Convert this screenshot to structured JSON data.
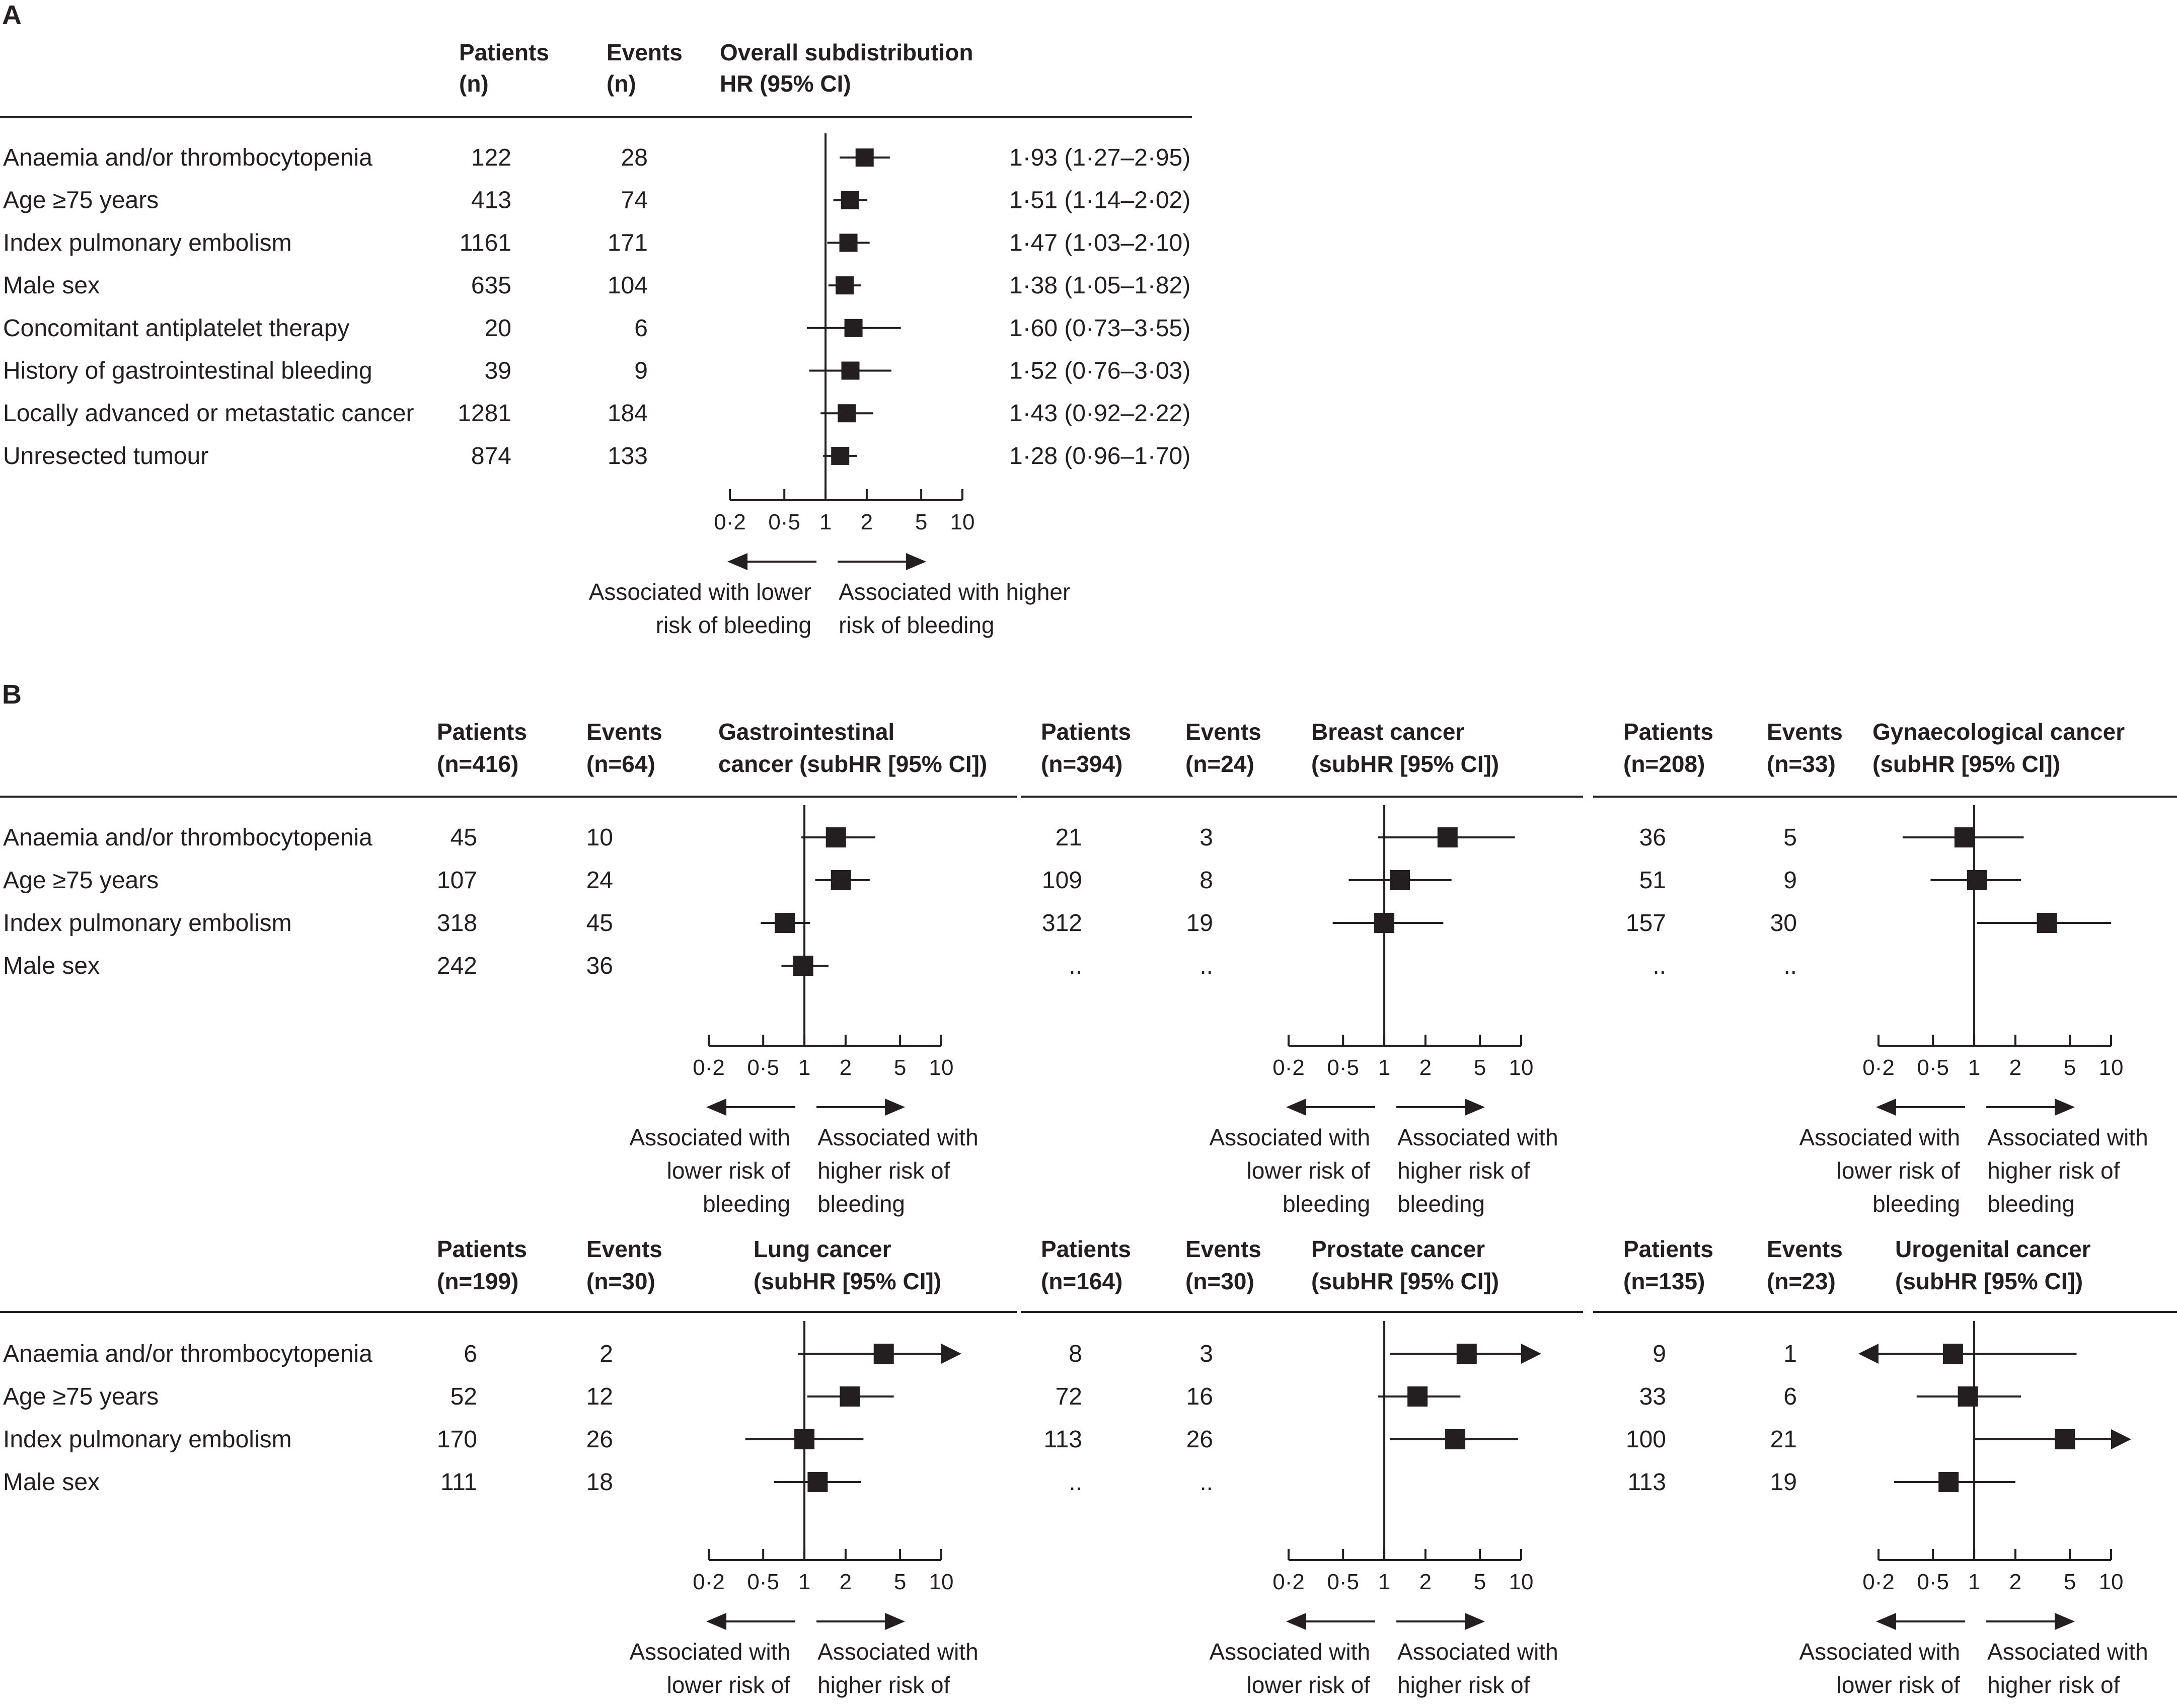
{
  "figure": {
    "panel_a_label": "A",
    "panel_b_label": "B",
    "arrow_lower_a": [
      "Associated with lower",
      "risk of bleeding"
    ],
    "arrow_higher_a": [
      "Associated with higher",
      "risk of bleeding"
    ],
    "arrow_lower_b": [
      "Associated with",
      "lower risk of",
      "bleeding"
    ],
    "arrow_higher_b": [
      "Associated with",
      "higher risk of",
      "bleeding"
    ],
    "axis_ticks": [
      "0·2",
      "0·5",
      "1",
      "2",
      "5",
      "10"
    ]
  },
  "chart_data": [
    {
      "type": "forest",
      "panel": "A",
      "x_scale": "log",
      "xlim": [
        0.2,
        10
      ],
      "reference": 1,
      "headers": {
        "patients": [
          "Patients",
          "(n)"
        ],
        "events": [
          "Events",
          "(n)"
        ],
        "estimate": [
          "Overall subdistribution",
          "HR (95% CI)"
        ]
      },
      "rows": [
        {
          "label": "Anaemia and/or thrombocytopenia",
          "patients": "122",
          "events": "28",
          "hr": 1.93,
          "lo": 1.27,
          "hi": 2.95,
          "text": "1·93 (1·27–2·95)"
        },
        {
          "label": "Age ≥75 years",
          "patients": "413",
          "events": "74",
          "hr": 1.51,
          "lo": 1.14,
          "hi": 2.02,
          "text": "1·51 (1·14–2·02)"
        },
        {
          "label": "Index pulmonary embolism",
          "patients": "1161",
          "events": "171",
          "hr": 1.47,
          "lo": 1.03,
          "hi": 2.1,
          "text": "1·47 (1·03–2·10)"
        },
        {
          "label": "Male sex",
          "patients": "635",
          "events": "104",
          "hr": 1.38,
          "lo": 1.05,
          "hi": 1.82,
          "text": "1·38 (1·05–1·82)"
        },
        {
          "label": "Concomitant antiplatelet therapy",
          "patients": "20",
          "events": "6",
          "hr": 1.6,
          "lo": 0.73,
          "hi": 3.55,
          "text": "1·60 (0·73–3·55)"
        },
        {
          "label": "History of gastrointestinal bleeding",
          "patients": "39",
          "events": "9",
          "hr": 1.52,
          "lo": 0.76,
          "hi": 3.03,
          "text": "1·52 (0·76–3·03)"
        },
        {
          "label": "Locally advanced or metastatic cancer",
          "patients": "1281",
          "events": "184",
          "hr": 1.43,
          "lo": 0.92,
          "hi": 2.22,
          "text": "1·43 (0·92–2·22)"
        },
        {
          "label": "Unresected tumour",
          "patients": "874",
          "events": "133",
          "hr": 1.28,
          "lo": 0.96,
          "hi": 1.7,
          "text": "1·28 (0·96–1·70)"
        }
      ]
    },
    {
      "type": "forest",
      "panel": "B",
      "x_scale": "log",
      "xlim": [
        0.2,
        10
      ],
      "reference": 1,
      "row_labels": [
        "Anaemia and/or thrombocytopenia",
        "Age ≥75 years",
        "Index pulmonary embolism",
        "Male sex"
      ],
      "subgroups": [
        {
          "name": "Gastrointestinal cancer",
          "patients_hdr": [
            "Patients",
            "(n=416)"
          ],
          "events_hdr": [
            "Events",
            "(n=64)"
          ],
          "est_hdr": [
            "Gastrointestinal",
            "cancer (subHR [95% CI])"
          ],
          "rows": [
            {
              "patients": "45",
              "events": "10",
              "hr": 1.7,
              "lo": 0.95,
              "hi": 3.3
            },
            {
              "patients": "107",
              "events": "24",
              "hr": 1.85,
              "lo": 1.2,
              "hi": 3.0
            },
            {
              "patients": "318",
              "events": "45",
              "hr": 0.72,
              "lo": 0.48,
              "hi": 1.1
            },
            {
              "patients": "242",
              "events": "36",
              "hr": 0.98,
              "lo": 0.68,
              "hi": 1.5
            }
          ]
        },
        {
          "name": "Breast cancer",
          "patients_hdr": [
            "Patients",
            "(n=394)"
          ],
          "events_hdr": [
            "Events",
            "(n=24)"
          ],
          "est_hdr": [
            "Breast cancer",
            "(subHR [95% CI])"
          ],
          "rows": [
            {
              "patients": "21",
              "events": "3",
              "hr": 2.9,
              "lo": 0.9,
              "hi": 9.0
            },
            {
              "patients": "109",
              "events": "8",
              "hr": 1.3,
              "lo": 0.55,
              "hi": 3.1
            },
            {
              "patients": "312",
              "events": "19",
              "hr": 1.0,
              "lo": 0.42,
              "hi": 2.7
            },
            {
              "patients": "..",
              "events": "..",
              "hr": null,
              "lo": null,
              "hi": null
            }
          ]
        },
        {
          "name": "Gynaecological cancer",
          "patients_hdr": [
            "Patients",
            "(n=208)"
          ],
          "events_hdr": [
            "Events",
            "(n=33)"
          ],
          "est_hdr": [
            "Gynaecological cancer",
            "(subHR [95% CI])"
          ],
          "rows": [
            {
              "patients": "36",
              "events": "5",
              "hr": 0.85,
              "lo": 0.3,
              "hi": 2.3
            },
            {
              "patients": "51",
              "events": "9",
              "hr": 1.05,
              "lo": 0.48,
              "hi": 2.2
            },
            {
              "patients": "157",
              "events": "30",
              "hr": 3.4,
              "lo": 1.05,
              "hi": 10.0
            },
            {
              "patients": "..",
              "events": "..",
              "hr": null,
              "lo": null,
              "hi": null
            }
          ]
        },
        {
          "name": "Lung cancer",
          "patients_hdr": [
            "Patients",
            "(n=199)"
          ],
          "events_hdr": [
            "Events",
            "(n=30)"
          ],
          "est_hdr": [
            "Lung cancer",
            "(subHR [95% CI])"
          ],
          "rows": [
            {
              "patients": "6",
              "events": "2",
              "hr": 3.8,
              "lo": 0.9,
              "hi": 10,
              "arrow_right": true
            },
            {
              "patients": "52",
              "events": "12",
              "hr": 2.15,
              "lo": 1.05,
              "hi": 4.5
            },
            {
              "patients": "170",
              "events": "26",
              "hr": 1.0,
              "lo": 0.37,
              "hi": 2.7
            },
            {
              "patients": "111",
              "events": "18",
              "hr": 1.25,
              "lo": 0.6,
              "hi": 2.6
            }
          ]
        },
        {
          "name": "Prostate cancer",
          "patients_hdr": [
            "Patients",
            "(n=164)"
          ],
          "events_hdr": [
            "Events",
            "(n=30)"
          ],
          "est_hdr": [
            "Prostate cancer",
            "(subHR [95% CI])"
          ],
          "rows": [
            {
              "patients": "8",
              "events": "3",
              "hr": 4.0,
              "lo": 1.1,
              "hi": 10,
              "arrow_right": true
            },
            {
              "patients": "72",
              "events": "16",
              "hr": 1.75,
              "lo": 0.9,
              "hi": 3.6
            },
            {
              "patients": "113",
              "events": "26",
              "hr": 3.3,
              "lo": 1.1,
              "hi": 9.5
            },
            {
              "patients": "..",
              "events": "..",
              "hr": null,
              "lo": null,
              "hi": null
            }
          ]
        },
        {
          "name": "Urogenital cancer",
          "patients_hdr": [
            "Patients",
            "(n=135)"
          ],
          "events_hdr": [
            "Events",
            "(n=23)"
          ],
          "est_hdr": [
            "Urogenital cancer",
            "(subHR [95% CI])"
          ],
          "rows": [
            {
              "patients": "9",
              "events": "1",
              "hr": 0.7,
              "lo": 0.2,
              "hi": 5.6,
              "arrow_left": true
            },
            {
              "patients": "33",
              "events": "6",
              "hr": 0.9,
              "lo": 0.38,
              "hi": 2.2
            },
            {
              "patients": "100",
              "events": "21",
              "hr": 4.6,
              "lo": 1.0,
              "hi": 10,
              "arrow_right": true
            },
            {
              "patients": "113",
              "events": "19",
              "hr": 0.65,
              "lo": 0.26,
              "hi": 2.0
            }
          ]
        }
      ]
    }
  ]
}
